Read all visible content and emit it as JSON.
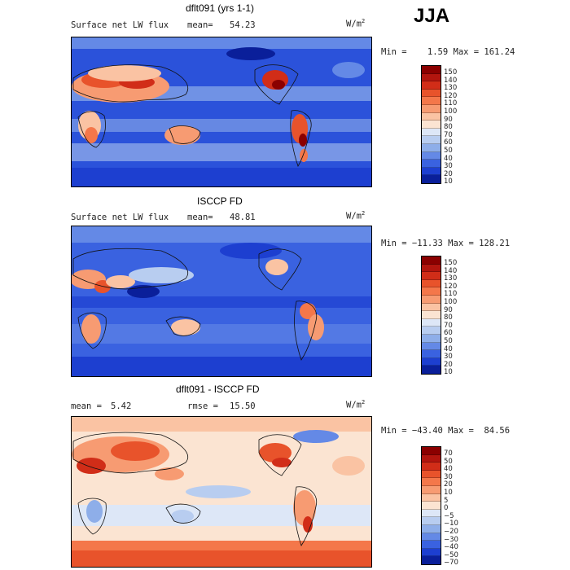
{
  "season": "JJA",
  "unit_label": "W/m",
  "unit_sup": "2",
  "chart_data": [
    {
      "type": "heatmap",
      "title": "dflt091 (yrs 1-1)",
      "variable": "Surface net LW flux",
      "mean_label": "mean=",
      "mean": "54.23",
      "stats": "Min =    1.59 Max = 161.24",
      "levels": [
        "150",
        "140",
        "130",
        "120",
        "110",
        "100",
        "90",
        "80",
        "70",
        "60",
        "50",
        "40",
        "30",
        "20",
        "10"
      ],
      "colors": [
        "#8b0000",
        "#b2150e",
        "#d12d18",
        "#e8532b",
        "#f4774a",
        "#f79b72",
        "#fac3a3",
        "#fbe4d2",
        "#dde7f7",
        "#b8cdf0",
        "#8eaee9",
        "#6489e6",
        "#3a62e0",
        "#1d3fd0",
        "#0a1f9a"
      ]
    },
    {
      "type": "heatmap",
      "title": "ISCCP FD",
      "variable": "Surface net LW flux",
      "mean_label": "mean=",
      "mean": "48.81",
      "stats": "Min = −11.33 Max = 128.21",
      "levels": [
        "150",
        "140",
        "130",
        "120",
        "110",
        "100",
        "90",
        "80",
        "70",
        "60",
        "50",
        "40",
        "30",
        "20",
        "10"
      ],
      "colors": [
        "#8b0000",
        "#b2150e",
        "#d12d18",
        "#e8532b",
        "#f4774a",
        "#f79b72",
        "#fac3a3",
        "#fbe4d2",
        "#dde7f7",
        "#b8cdf0",
        "#8eaee9",
        "#6489e6",
        "#3a62e0",
        "#1d3fd0",
        "#0a1f9a"
      ]
    },
    {
      "type": "heatmap",
      "title": "dflt091 - ISCCP FD",
      "mean_label": "mean =",
      "mean": "5.42",
      "rmse_label": "rmse =",
      "rmse": "15.50",
      "stats": "Min = −43.40 Max =  84.56",
      "levels": [
        "70",
        "50",
        "40",
        "30",
        "20",
        "10",
        "5",
        "0",
        "−5",
        "−10",
        "−20",
        "−30",
        "−40",
        "−50",
        "−70"
      ],
      "colors": [
        "#8b0000",
        "#b2150e",
        "#d12d18",
        "#e8532b",
        "#f4774a",
        "#f79b72",
        "#fac3a3",
        "#fbe4d2",
        "#dde7f7",
        "#b8cdf0",
        "#8eaee9",
        "#6489e6",
        "#3a62e0",
        "#1d3fd0",
        "#0a1f9a"
      ]
    }
  ]
}
